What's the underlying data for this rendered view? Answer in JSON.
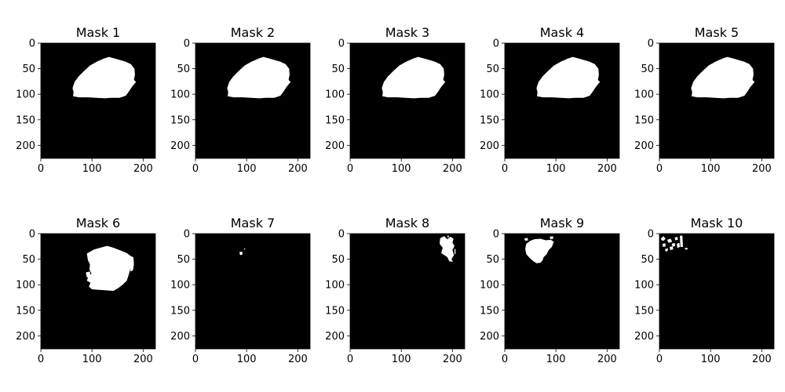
{
  "figure": {
    "panels": [
      {
        "title": "Mask 1"
      },
      {
        "title": "Mask 2"
      },
      {
        "title": "Mask 3"
      },
      {
        "title": "Mask 4"
      },
      {
        "title": "Mask 5"
      },
      {
        "title": "Mask 6"
      },
      {
        "title": "Mask 7"
      },
      {
        "title": "Mask 8"
      },
      {
        "title": "Mask 9"
      },
      {
        "title": "Mask 10"
      }
    ],
    "x_ticks": [
      "0",
      "100",
      "200"
    ],
    "y_ticks": [
      "0",
      "50",
      "100",
      "150",
      "200"
    ],
    "image_background": "#000000",
    "mask_color": "#ffffff"
  }
}
